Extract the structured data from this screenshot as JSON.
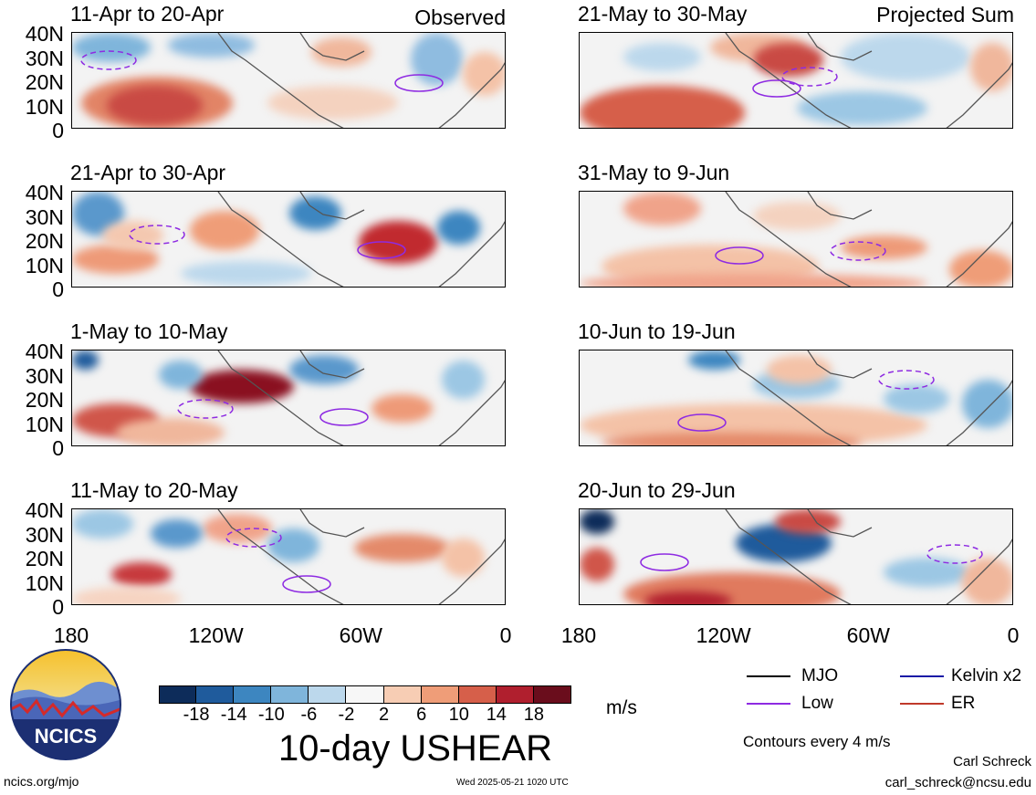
{
  "corner_labels": {
    "observed": "Observed",
    "projected": "Projected Sum"
  },
  "chart_data": [
    {
      "type": "heatmap",
      "title": "11-Apr to 20-Apr",
      "column": "Observed",
      "yticks": [
        "40N",
        "30N",
        "20N",
        "10N",
        "0"
      ],
      "xticks": [],
      "ylim": [
        0,
        40
      ],
      "xlim": [
        "180",
        "0"
      ]
    },
    {
      "type": "heatmap",
      "title": "21-Apr to 30-Apr",
      "column": "Observed",
      "yticks": [
        "40N",
        "30N",
        "20N",
        "10N",
        "0"
      ],
      "xticks": [],
      "ylim": [
        0,
        40
      ],
      "xlim": [
        "180",
        "0"
      ]
    },
    {
      "type": "heatmap",
      "title": "1-May to 10-May",
      "column": "Observed",
      "yticks": [
        "40N",
        "30N",
        "20N",
        "10N",
        "0"
      ],
      "xticks": [],
      "ylim": [
        0,
        40
      ],
      "xlim": [
        "180",
        "0"
      ]
    },
    {
      "type": "heatmap",
      "title": "11-May to 20-May",
      "column": "Observed",
      "yticks": [
        "40N",
        "30N",
        "20N",
        "10N",
        "0"
      ],
      "xticks": [
        "180",
        "120W",
        "60W",
        "0"
      ],
      "ylim": [
        0,
        40
      ],
      "xlim": [
        "180",
        "0"
      ]
    },
    {
      "type": "heatmap",
      "title": "21-May to 30-May",
      "column": "Projected Sum",
      "yticks": [],
      "xticks": [],
      "ylim": [
        0,
        40
      ],
      "xlim": [
        "180",
        "0"
      ]
    },
    {
      "type": "heatmap",
      "title": "31-May to 9-Jun",
      "column": "Projected Sum",
      "yticks": [],
      "xticks": [],
      "ylim": [
        0,
        40
      ],
      "xlim": [
        "180",
        "0"
      ]
    },
    {
      "type": "heatmap",
      "title": "10-Jun to 19-Jun",
      "column": "Projected Sum",
      "yticks": [],
      "xticks": [],
      "ylim": [
        0,
        40
      ],
      "xlim": [
        "180",
        "0"
      ]
    },
    {
      "type": "heatmap",
      "title": "20-Jun to 29-Jun",
      "column": "Projected Sum",
      "yticks": [],
      "xticks": [
        "180",
        "120W",
        "60W",
        "0"
      ],
      "ylim": [
        0,
        40
      ],
      "xlim": [
        "180",
        "0"
      ]
    }
  ],
  "y_tick_labels": [
    "40N",
    "30N",
    "20N",
    "10N",
    "0"
  ],
  "x_tick_labels": [
    "180",
    "120W",
    "60W",
    "0"
  ],
  "colorbar": {
    "ticks": [
      "-18",
      "-14",
      "-10",
      "-6",
      "-2",
      "2",
      "6",
      "10",
      "14",
      "18"
    ],
    "units": "m/s",
    "colors": [
      "#0d2c5a",
      "#1f5b9c",
      "#3d86c0",
      "#7fb5db",
      "#bcd8ec",
      "#f7f7f7",
      "#f7cdb4",
      "#ef9d78",
      "#d65f4a",
      "#b01f2e",
      "#6a0d1c"
    ]
  },
  "variable_title": "10-day USHEAR",
  "legend": {
    "items": [
      {
        "label": "MJO",
        "color": "#000000"
      },
      {
        "label": "Kelvin x2",
        "color": "#1a1aa6"
      },
      {
        "label": "Low",
        "color": "#8e2be2"
      },
      {
        "label": "ER",
        "color": "#c0392b"
      }
    ],
    "contour_note": "Contours every 4 m/s"
  },
  "footer": {
    "left": "ncics.org/mjo",
    "center": "Wed 2025-05-21 1020 UTC",
    "author": "Carl Schreck",
    "email": "carl_schreck@ncsu.edu"
  },
  "logo": {
    "text": "NCICS"
  }
}
